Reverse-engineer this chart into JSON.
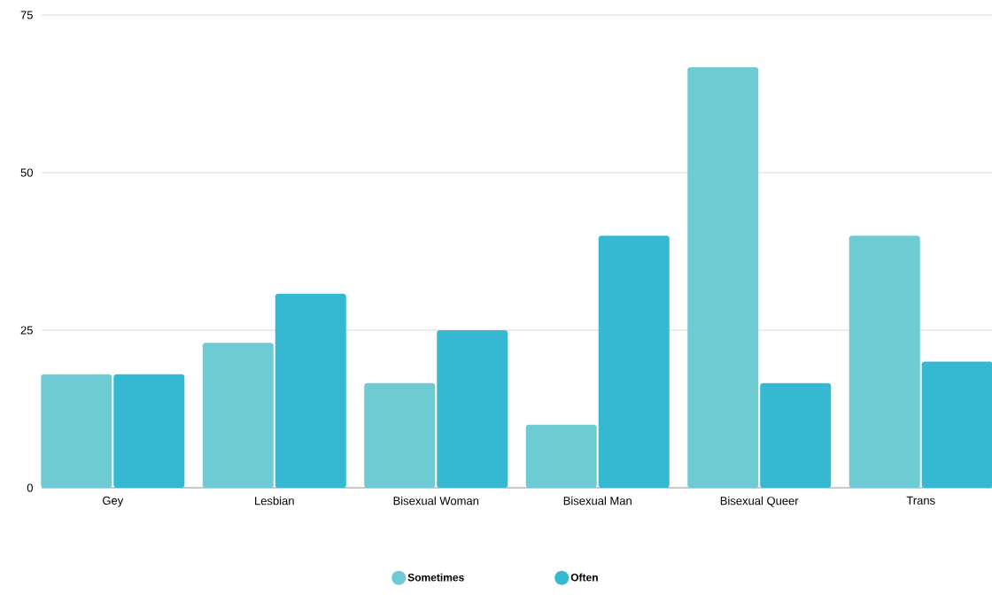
{
  "chart_data": {
    "type": "bar",
    "categories": [
      "Gey",
      "Lesbian",
      "Bisexual Woman",
      "Bisexual Man",
      "Bisexual Queer",
      "Trans"
    ],
    "series": [
      {
        "name": "Sometimes",
        "color": "#6ecbd3",
        "values": [
          18,
          23,
          16.6,
          10,
          66.7,
          40
        ]
      },
      {
        "name": "Often",
        "color": "#35b9d3",
        "values": [
          18,
          30.8,
          25,
          40,
          16.6,
          20
        ]
      }
    ],
    "ylim": [
      0,
      75
    ],
    "yticks": [
      0,
      25,
      50,
      75
    ],
    "grid": "y",
    "legend": "bottom"
  }
}
